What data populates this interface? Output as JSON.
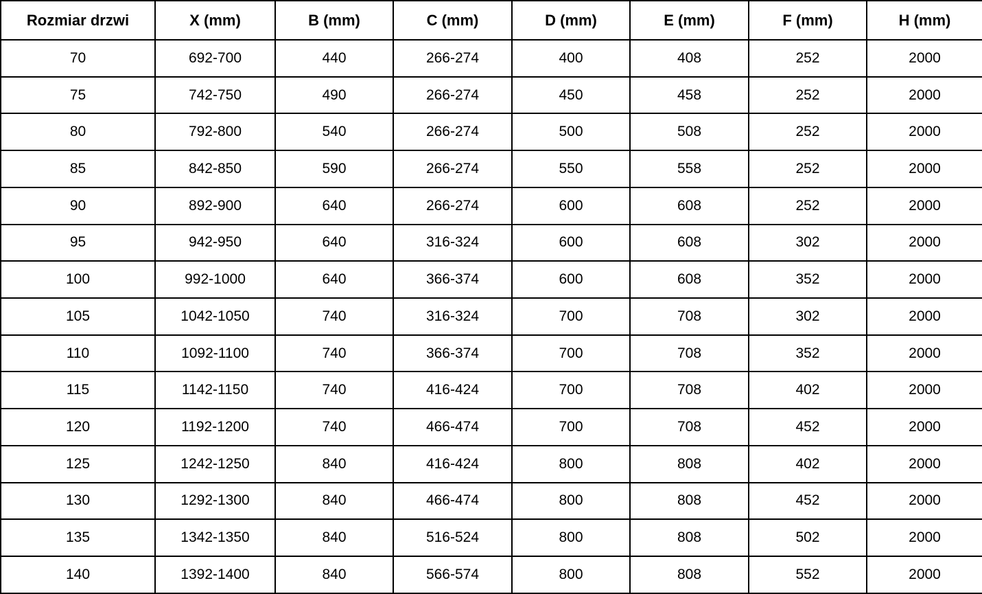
{
  "colors": {
    "border": "#000000",
    "background": "#ffffff",
    "text": "#000000"
  },
  "table": {
    "headers": [
      "Rozmiar drzwi",
      "X (mm)",
      "B (mm)",
      "C (mm)",
      "D (mm)",
      "E (mm)",
      "F (mm)",
      "H (mm)"
    ],
    "rows": [
      [
        "70",
        "692-700",
        "440",
        "266-274",
        "400",
        "408",
        "252",
        "2000"
      ],
      [
        "75",
        "742-750",
        "490",
        "266-274",
        "450",
        "458",
        "252",
        "2000"
      ],
      [
        "80",
        "792-800",
        "540",
        "266-274",
        "500",
        "508",
        "252",
        "2000"
      ],
      [
        "85",
        "842-850",
        "590",
        "266-274",
        "550",
        "558",
        "252",
        "2000"
      ],
      [
        "90",
        "892-900",
        "640",
        "266-274",
        "600",
        "608",
        "252",
        "2000"
      ],
      [
        "95",
        "942-950",
        "640",
        "316-324",
        "600",
        "608",
        "302",
        "2000"
      ],
      [
        "100",
        "992-1000",
        "640",
        "366-374",
        "600",
        "608",
        "352",
        "2000"
      ],
      [
        "105",
        "1042-1050",
        "740",
        "316-324",
        "700",
        "708",
        "302",
        "2000"
      ],
      [
        "110",
        "1092-1100",
        "740",
        "366-374",
        "700",
        "708",
        "352",
        "2000"
      ],
      [
        "115",
        "1142-1150",
        "740",
        "416-424",
        "700",
        "708",
        "402",
        "2000"
      ],
      [
        "120",
        "1192-1200",
        "740",
        "466-474",
        "700",
        "708",
        "452",
        "2000"
      ],
      [
        "125",
        "1242-1250",
        "840",
        "416-424",
        "800",
        "808",
        "402",
        "2000"
      ],
      [
        "130",
        "1292-1300",
        "840",
        "466-474",
        "800",
        "808",
        "452",
        "2000"
      ],
      [
        "135",
        "1342-1350",
        "840",
        "516-524",
        "800",
        "808",
        "502",
        "2000"
      ],
      [
        "140",
        "1392-1400",
        "840",
        "566-574",
        "800",
        "808",
        "552",
        "2000"
      ]
    ]
  },
  "chart_data": {
    "type": "table",
    "title": "",
    "columns": [
      "Rozmiar drzwi",
      "X (mm)",
      "B (mm)",
      "C (mm)",
      "D (mm)",
      "E (mm)",
      "F (mm)",
      "H (mm)"
    ],
    "rows": [
      [
        "70",
        "692-700",
        "440",
        "266-274",
        "400",
        "408",
        "252",
        "2000"
      ],
      [
        "75",
        "742-750",
        "490",
        "266-274",
        "450",
        "458",
        "252",
        "2000"
      ],
      [
        "80",
        "792-800",
        "540",
        "266-274",
        "500",
        "508",
        "252",
        "2000"
      ],
      [
        "85",
        "842-850",
        "590",
        "266-274",
        "550",
        "558",
        "252",
        "2000"
      ],
      [
        "90",
        "892-900",
        "640",
        "266-274",
        "600",
        "608",
        "252",
        "2000"
      ],
      [
        "95",
        "942-950",
        "640",
        "316-324",
        "600",
        "608",
        "302",
        "2000"
      ],
      [
        "100",
        "992-1000",
        "640",
        "366-374",
        "600",
        "608",
        "352",
        "2000"
      ],
      [
        "105",
        "1042-1050",
        "740",
        "316-324",
        "700",
        "708",
        "302",
        "2000"
      ],
      [
        "110",
        "1092-1100",
        "740",
        "366-374",
        "700",
        "708",
        "352",
        "2000"
      ],
      [
        "115",
        "1142-1150",
        "740",
        "416-424",
        "700",
        "708",
        "402",
        "2000"
      ],
      [
        "120",
        "1192-1200",
        "740",
        "466-474",
        "700",
        "708",
        "452",
        "2000"
      ],
      [
        "125",
        "1242-1250",
        "840",
        "416-424",
        "800",
        "808",
        "402",
        "2000"
      ],
      [
        "130",
        "1292-1300",
        "840",
        "466-474",
        "800",
        "808",
        "452",
        "2000"
      ],
      [
        "135",
        "1342-1350",
        "840",
        "516-524",
        "800",
        "808",
        "502",
        "2000"
      ],
      [
        "140",
        "1392-1400",
        "840",
        "566-574",
        "800",
        "808",
        "552",
        "2000"
      ]
    ]
  }
}
